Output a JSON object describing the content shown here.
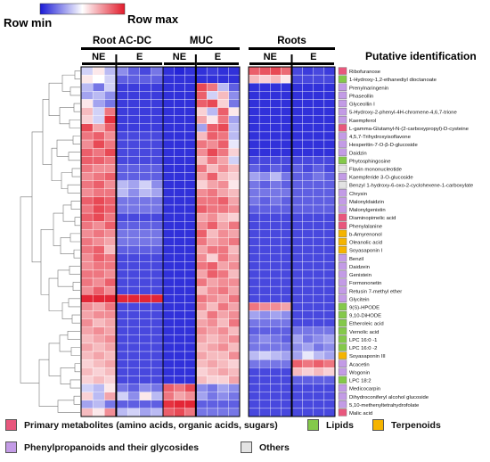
{
  "chart_data": {
    "type": "heatmap",
    "color_scale": {
      "min_label": "Row min",
      "max_label": "Row max",
      "low_color": "#1a1ad6",
      "mid_color": "#ffffff",
      "high_color": "#e21b2b"
    },
    "sample_groups": [
      {
        "name": "Root AC-DC",
        "subgroups": [
          {
            "name": "NE",
            "columns": 3
          },
          {
            "name": "E",
            "columns": 4
          }
        ]
      },
      {
        "name": "MUC",
        "subgroups": [
          {
            "name": "NE",
            "columns": 3
          },
          {
            "name": "E",
            "columns": 4
          }
        ]
      },
      {
        "name": "Roots",
        "subgroups": [
          {
            "name": "NE",
            "columns": 4
          },
          {
            "name": "E",
            "columns": 4
          }
        ]
      }
    ],
    "row_header": "Putative identification",
    "rows": [
      {
        "name": "Ribofuranose",
        "category": "primary"
      },
      {
        "name": "1-Hydroxy-1,2-ethanediyl  dioctanoate",
        "category": "lipid"
      },
      {
        "name": "Prenylnaringenin",
        "category": "phenyl"
      },
      {
        "name": "Phaseollin",
        "category": "phenyl"
      },
      {
        "name": "Glyceollin  I",
        "category": "phenyl"
      },
      {
        "name": "5-Hydroxy-2-phenyl-4H-chromene-4,6,7-trione",
        "category": "phenyl"
      },
      {
        "name": "Kaempferol",
        "category": "phenyl"
      },
      {
        "name": "L-gamma-Glutamyl-N-(2-carboxypropyl)-D-cysteine",
        "category": "primary"
      },
      {
        "name": "4,5,7-Trihydroxyisoflavone",
        "category": "phenyl"
      },
      {
        "name": "Hesperitin-7-O-β-D-glucoside",
        "category": "phenyl"
      },
      {
        "name": "Daidzin",
        "category": "phenyl"
      },
      {
        "name": "Phytosphingosine",
        "category": "lipid"
      },
      {
        "name": "Flavin  mononucleotide",
        "category": "others"
      },
      {
        "name": "Kaempferide 3-O-glucoside",
        "category": "phenyl"
      },
      {
        "name": "Benzyl 1-hydroxy-6-oxo-2-cyclohexene-1-carboxylate",
        "category": "others"
      },
      {
        "name": "Chrysin",
        "category": "phenyl"
      },
      {
        "name": "Malonyldaidzin",
        "category": "phenyl"
      },
      {
        "name": "Malonylgenistin",
        "category": "phenyl"
      },
      {
        "name": "Diaminopimelic  acid",
        "category": "primary"
      },
      {
        "name": "Phenylalanine",
        "category": "primary"
      },
      {
        "name": "b-Amyrenonol",
        "category": "terpenoid"
      },
      {
        "name": "Oleanolic  acid",
        "category": "terpenoid"
      },
      {
        "name": "Soyasaponin  I",
        "category": "terpenoid"
      },
      {
        "name": "Benzil",
        "category": "phenyl"
      },
      {
        "name": "Daidzein",
        "category": "phenyl"
      },
      {
        "name": "Genistein",
        "category": "phenyl"
      },
      {
        "name": "Formononetin",
        "category": "phenyl"
      },
      {
        "name": "Retusin 7-methyl ether",
        "category": "phenyl"
      },
      {
        "name": "Glycitein",
        "category": "phenyl"
      },
      {
        "name": "9(S)-HPODE",
        "category": "lipid"
      },
      {
        "name": "9,10-DiHODE",
        "category": "lipid"
      },
      {
        "name": "Etheroleic  acid",
        "category": "lipid"
      },
      {
        "name": "Vernolic  acid",
        "category": "lipid"
      },
      {
        "name": "LPC 16:0 -1",
        "category": "lipid"
      },
      {
        "name": "LPC 16:0 -2",
        "category": "lipid"
      },
      {
        "name": "Soyasaponin  III",
        "category": "terpenoid"
      },
      {
        "name": "Acacetin",
        "category": "phenyl"
      },
      {
        "name": "Wogonin",
        "category": "phenyl"
      },
      {
        "name": "LPC 18:2",
        "category": "lipid"
      },
      {
        "name": "Medicocarpin",
        "category": "phenyl"
      },
      {
        "name": "Dihydroconiferyl  alcohol glucoside",
        "category": "phenyl"
      },
      {
        "name": "5,10-methenyltetrahydrofolate",
        "category": "phenyl"
      },
      {
        "name": "Malic acid",
        "category": "primary"
      }
    ],
    "legend": [
      {
        "key": "primary",
        "label": "Primary metabolites (amino acids, organic acids, sugars)",
        "color": "#e8577d"
      },
      {
        "key": "lipid",
        "label": "Lipids",
        "color": "#84c94a"
      },
      {
        "key": "terpenoid",
        "label": "Terpenoids",
        "color": "#f5b400"
      },
      {
        "key": "phenyl",
        "label": "Phenylpropanoids and their glycosides",
        "color": "#c39be6"
      },
      {
        "key": "others",
        "label": "Others",
        "color": "#e3e3e3"
      }
    ],
    "values": [
      [
        -0.2,
        0.1,
        -0.3,
        -0.5,
        -0.7,
        -0.8,
        -0.6,
        -0.9,
        -0.95,
        -0.9,
        -0.9,
        -0.85,
        -0.9,
        -0.9,
        0.7,
        0.75,
        0.8,
        0.65,
        -0.8,
        -0.85,
        -0.8,
        -0.85
      ],
      [
        0.1,
        0.0,
        -0.2,
        -0.7,
        -0.7,
        -0.7,
        -0.7,
        -0.9,
        -0.9,
        -0.9,
        -0.9,
        -0.9,
        -0.9,
        -0.9,
        0.3,
        0.2,
        0.3,
        0.1,
        -0.8,
        -0.8,
        -0.8,
        -0.8
      ],
      [
        -0.3,
        -0.6,
        -0.2,
        -0.85,
        -0.85,
        -0.85,
        -0.85,
        -0.9,
        -0.9,
        -0.9,
        0.8,
        0.6,
        -0.3,
        -0.7,
        -0.9,
        -0.9,
        -0.9,
        -0.9,
        -0.9,
        -0.9,
        -0.9,
        -0.9
      ],
      [
        -0.4,
        -0.3,
        -0.5,
        -0.85,
        -0.85,
        -0.85,
        -0.85,
        -0.9,
        -0.9,
        -0.9,
        0.7,
        -0.2,
        0.3,
        -0.5,
        -0.9,
        -0.9,
        -0.9,
        -0.9,
        -0.9,
        -0.9,
        -0.9,
        -0.9
      ],
      [
        0.1,
        -0.4,
        -0.6,
        -0.85,
        -0.85,
        -0.85,
        -0.85,
        -0.9,
        -0.9,
        -0.9,
        0.7,
        0.8,
        0.2,
        -0.6,
        -0.9,
        -0.9,
        -0.9,
        -0.9,
        -0.9,
        -0.9,
        -0.9,
        -0.9
      ],
      [
        0.3,
        -0.2,
        0.6,
        -0.85,
        -0.85,
        -0.85,
        -0.85,
        -0.9,
        -0.9,
        -0.9,
        0.2,
        -0.3,
        0.7,
        0.1,
        -0.9,
        -0.9,
        -0.9,
        -0.9,
        -0.9,
        -0.9,
        -0.9,
        -0.9
      ],
      [
        0.2,
        -0.2,
        0.9,
        -0.85,
        -0.85,
        -0.85,
        -0.85,
        -0.9,
        -0.9,
        -0.9,
        0.4,
        0.1,
        0.6,
        -0.4,
        -0.9,
        -0.9,
        -0.9,
        -0.9,
        -0.9,
        -0.9,
        -0.9,
        -0.9
      ],
      [
        0.8,
        0.4,
        0.7,
        -0.85,
        -0.85,
        -0.85,
        -0.85,
        -0.9,
        -0.9,
        -0.9,
        -0.4,
        0.7,
        0.8,
        -0.3,
        -0.9,
        -0.9,
        -0.9,
        -0.9,
        -0.9,
        -0.9,
        -0.9,
        -0.9
      ],
      [
        0.6,
        0.7,
        0.5,
        -0.8,
        -0.8,
        -0.8,
        -0.8,
        -0.9,
        -0.9,
        -0.9,
        0.3,
        0.7,
        0.6,
        -0.3,
        -0.9,
        -0.9,
        -0.9,
        -0.9,
        -0.9,
        -0.9,
        -0.9,
        -0.9
      ],
      [
        0.5,
        0.8,
        0.6,
        -0.8,
        -0.8,
        -0.8,
        -0.8,
        -0.9,
        -0.9,
        -0.9,
        0.6,
        0.5,
        0.7,
        -0.1,
        -0.9,
        -0.9,
        -0.9,
        -0.9,
        -0.9,
        -0.9,
        -0.9,
        -0.9
      ],
      [
        0.7,
        0.6,
        0.8,
        -0.8,
        -0.8,
        -0.8,
        -0.8,
        -0.9,
        -0.9,
        -0.9,
        0.5,
        0.8,
        0.6,
        0.2,
        -0.9,
        -0.9,
        -0.9,
        -0.9,
        -0.9,
        -0.9,
        -0.9,
        -0.9
      ],
      [
        0.7,
        0.7,
        0.6,
        -0.8,
        -0.8,
        -0.8,
        -0.8,
        -0.9,
        -0.9,
        -0.9,
        0.3,
        0.6,
        0.4,
        -0.2,
        -0.8,
        -0.8,
        -0.8,
        -0.8,
        -0.8,
        -0.8,
        -0.8,
        -0.8
      ],
      [
        0.6,
        0.5,
        0.5,
        -0.7,
        -0.7,
        -0.7,
        -0.7,
        -0.9,
        -0.9,
        -0.9,
        0.6,
        0.3,
        0.5,
        0.3,
        -0.7,
        -0.8,
        -0.7,
        -0.8,
        -0.7,
        -0.8,
        -0.7,
        -0.8
      ],
      [
        0.5,
        0.6,
        0.7,
        -0.7,
        -0.7,
        -0.7,
        -0.7,
        -0.9,
        -0.9,
        -0.9,
        0.4,
        0.7,
        0.3,
        0.2,
        -0.4,
        -0.5,
        -0.3,
        -0.6,
        -0.7,
        -0.7,
        -0.6,
        -0.7
      ],
      [
        0.6,
        0.7,
        0.5,
        -0.3,
        -0.4,
        -0.2,
        -0.5,
        -0.9,
        -0.9,
        -0.9,
        0.2,
        0.4,
        0.5,
        0.1,
        -0.6,
        -0.7,
        -0.6,
        -0.7,
        -0.7,
        -0.7,
        -0.7,
        -0.7
      ],
      [
        0.5,
        0.6,
        0.6,
        -0.3,
        -0.5,
        -0.3,
        -0.4,
        -0.9,
        -0.9,
        -0.9,
        0.5,
        0.6,
        0.4,
        0.3,
        -0.6,
        -0.6,
        -0.6,
        -0.6,
        -0.7,
        -0.7,
        -0.7,
        -0.7
      ],
      [
        0.7,
        0.8,
        0.7,
        -0.6,
        -0.6,
        -0.6,
        -0.6,
        -0.9,
        -0.9,
        -0.9,
        0.6,
        0.6,
        0.7,
        0.4,
        -0.6,
        -0.7,
        -0.6,
        -0.7,
        -0.7,
        -0.7,
        -0.7,
        -0.7
      ],
      [
        0.6,
        0.8,
        0.7,
        -0.6,
        -0.6,
        -0.6,
        -0.6,
        -0.9,
        -0.9,
        -0.9,
        0.7,
        0.6,
        0.6,
        0.5,
        -0.7,
        -0.7,
        -0.7,
        -0.7,
        -0.7,
        -0.7,
        -0.7,
        -0.7
      ],
      [
        0.7,
        0.8,
        0.6,
        -0.8,
        -0.8,
        -0.8,
        -0.8,
        -0.9,
        -0.9,
        -0.9,
        0.4,
        0.5,
        0.3,
        0.2,
        -0.8,
        -0.8,
        -0.8,
        -0.8,
        -0.8,
        -0.8,
        -0.8,
        -0.8
      ],
      [
        0.6,
        0.5,
        0.7,
        -0.7,
        -0.7,
        -0.7,
        -0.7,
        -0.9,
        -0.9,
        -0.9,
        0.5,
        0.7,
        0.4,
        0.6,
        -0.8,
        -0.8,
        -0.8,
        -0.8,
        -0.8,
        -0.8,
        -0.8,
        -0.8
      ],
      [
        0.5,
        0.6,
        0.5,
        -0.6,
        -0.6,
        -0.6,
        -0.6,
        -0.9,
        -0.9,
        -0.9,
        0.7,
        0.3,
        0.5,
        0.4,
        -0.8,
        -0.8,
        -0.8,
        -0.8,
        -0.8,
        -0.8,
        -0.8,
        -0.8
      ],
      [
        0.6,
        0.5,
        0.4,
        -0.6,
        -0.6,
        -0.6,
        -0.6,
        -0.9,
        -0.9,
        -0.9,
        0.6,
        0.4,
        0.5,
        0.6,
        -0.8,
        -0.8,
        -0.8,
        -0.8,
        -0.8,
        -0.8,
        -0.8,
        -0.8
      ],
      [
        0.6,
        0.7,
        0.3,
        -0.7,
        -0.7,
        -0.7,
        -0.7,
        -0.9,
        -0.9,
        -0.9,
        0.4,
        0.6,
        0.6,
        0.3,
        -0.8,
        -0.8,
        -0.8,
        -0.8,
        -0.8,
        -0.8,
        -0.8,
        -0.8
      ],
      [
        0.5,
        0.7,
        0.6,
        -0.8,
        -0.8,
        -0.8,
        -0.8,
        -0.9,
        -0.9,
        -0.9,
        0.5,
        0.2,
        0.6,
        0.4,
        -0.8,
        -0.8,
        -0.8,
        -0.8,
        -0.8,
        -0.8,
        -0.8,
        -0.8
      ],
      [
        0.5,
        0.6,
        0.6,
        -0.8,
        -0.8,
        -0.8,
        -0.8,
        -0.9,
        -0.9,
        -0.9,
        0.6,
        0.7,
        0.4,
        0.5,
        -0.8,
        -0.8,
        -0.8,
        -0.8,
        -0.8,
        -0.8,
        -0.8,
        -0.8
      ],
      [
        0.6,
        0.6,
        0.5,
        -0.8,
        -0.8,
        -0.8,
        -0.8,
        -0.9,
        -0.9,
        -0.9,
        0.4,
        0.7,
        0.6,
        0.3,
        -0.8,
        -0.8,
        -0.8,
        -0.8,
        -0.8,
        -0.8,
        -0.8,
        -0.8
      ],
      [
        0.6,
        0.5,
        0.7,
        -0.8,
        -0.8,
        -0.8,
        -0.8,
        -0.9,
        -0.9,
        -0.9,
        0.6,
        0.4,
        0.5,
        0.5,
        -0.8,
        -0.8,
        -0.8,
        -0.8,
        -0.8,
        -0.8,
        -0.8,
        -0.8
      ],
      [
        0.5,
        0.7,
        0.5,
        -0.8,
        -0.8,
        -0.8,
        -0.8,
        -0.9,
        -0.9,
        -0.9,
        0.3,
        0.5,
        0.6,
        0.4,
        -0.8,
        -0.8,
        -0.8,
        -0.8,
        -0.8,
        -0.8,
        -0.8,
        -0.8
      ],
      [
        0.95,
        0.95,
        0.95,
        0.95,
        0.95,
        0.95,
        0.95,
        -0.9,
        -0.9,
        -0.9,
        0.6,
        0.5,
        0.4,
        0.6,
        -0.8,
        -0.8,
        -0.8,
        -0.8,
        -0.8,
        -0.8,
        -0.8,
        -0.8
      ],
      [
        0.5,
        0.4,
        0.6,
        -0.8,
        -0.8,
        -0.8,
        -0.8,
        -0.9,
        -0.9,
        -0.9,
        0.5,
        0.3,
        0.6,
        0.4,
        0.6,
        0.5,
        0.5,
        0.4,
        -0.8,
        -0.8,
        -0.8,
        -0.8
      ],
      [
        0.4,
        0.5,
        0.5,
        -0.8,
        -0.8,
        -0.8,
        -0.8,
        -0.9,
        -0.9,
        -0.9,
        0.3,
        0.6,
        0.4,
        0.5,
        -0.4,
        -0.5,
        -0.4,
        -0.5,
        -0.8,
        -0.8,
        -0.8,
        -0.8
      ],
      [
        0.5,
        0.3,
        0.4,
        -0.8,
        -0.8,
        -0.8,
        -0.8,
        -0.9,
        -0.9,
        -0.9,
        0.4,
        0.5,
        0.3,
        0.6,
        -0.6,
        -0.6,
        -0.6,
        -0.6,
        -0.8,
        -0.8,
        -0.8,
        -0.8
      ],
      [
        0.4,
        0.5,
        0.4,
        -0.8,
        -0.8,
        -0.8,
        -0.8,
        -0.9,
        -0.9,
        -0.9,
        0.5,
        0.4,
        0.5,
        0.3,
        -0.7,
        -0.7,
        -0.7,
        -0.7,
        -0.6,
        -0.6,
        -0.6,
        -0.6
      ],
      [
        0.3,
        0.4,
        0.5,
        -0.8,
        -0.8,
        -0.8,
        -0.8,
        -0.9,
        -0.9,
        -0.9,
        0.4,
        0.3,
        0.4,
        0.5,
        -0.6,
        -0.5,
        -0.6,
        -0.7,
        -0.4,
        -0.6,
        -0.5,
        -0.4
      ],
      [
        0.4,
        0.3,
        0.4,
        -0.8,
        -0.8,
        -0.8,
        -0.8,
        -0.9,
        -0.9,
        -0.9,
        0.3,
        0.4,
        0.5,
        0.3,
        -0.6,
        -0.6,
        -0.6,
        -0.6,
        -0.5,
        -0.4,
        -0.6,
        -0.5
      ],
      [
        0.3,
        0.4,
        0.3,
        -0.8,
        -0.8,
        -0.8,
        -0.8,
        -0.9,
        -0.9,
        -0.9,
        0.4,
        0.3,
        0.3,
        0.5,
        -0.3,
        -0.2,
        -0.3,
        -0.4,
        -0.4,
        -0.1,
        -0.3,
        -0.4
      ],
      [
        0.2,
        0.3,
        0.4,
        -0.8,
        -0.8,
        -0.8,
        -0.8,
        -0.9,
        -0.9,
        -0.9,
        0.3,
        0.4,
        0.3,
        0.2,
        -0.6,
        -0.6,
        -0.6,
        -0.6,
        0.7,
        0.6,
        0.7,
        0.6
      ],
      [
        0.3,
        0.2,
        0.3,
        -0.8,
        -0.8,
        -0.8,
        -0.8,
        -0.9,
        -0.9,
        -0.9,
        0.2,
        0.3,
        0.4,
        0.3,
        -0.8,
        -0.8,
        -0.8,
        -0.8,
        0.3,
        0.2,
        0.3,
        0.2
      ],
      [
        0.2,
        0.3,
        0.2,
        -0.8,
        -0.8,
        -0.8,
        -0.8,
        -0.9,
        -0.9,
        -0.9,
        0.3,
        0.2,
        0.2,
        0.4,
        -0.8,
        -0.8,
        -0.8,
        -0.8,
        -0.7,
        -0.7,
        -0.7,
        -0.7
      ],
      [
        -0.2,
        -0.3,
        0.1,
        -0.6,
        -0.7,
        -0.5,
        -0.6,
        0.7,
        0.6,
        0.8,
        -0.5,
        -0.6,
        -0.4,
        -0.5,
        -0.8,
        -0.8,
        -0.8,
        -0.8,
        -0.8,
        -0.8,
        -0.8,
        -0.8
      ],
      [
        0.2,
        -0.3,
        0.4,
        -0.2,
        -0.5,
        0.1,
        -0.3,
        0.6,
        0.4,
        0.5,
        -0.4,
        -0.6,
        -0.5,
        -0.6,
        -0.8,
        -0.8,
        -0.8,
        -0.8,
        -0.8,
        -0.8,
        -0.8,
        -0.8
      ],
      [
        -0.4,
        -0.3,
        -0.6,
        -0.7,
        -0.7,
        -0.7,
        -0.7,
        0.9,
        0.95,
        0.95,
        -0.7,
        -0.7,
        -0.7,
        -0.7,
        -0.8,
        -0.8,
        -0.8,
        -0.8,
        -0.8,
        -0.8,
        -0.8,
        -0.8
      ],
      [
        0.3,
        0.1,
        0.5,
        -0.3,
        -0.2,
        -0.4,
        -0.3,
        0.7,
        0.8,
        0.6,
        -0.6,
        -0.6,
        -0.6,
        -0.6,
        -0.8,
        -0.8,
        -0.8,
        -0.8,
        -0.8,
        -0.8,
        -0.8,
        -0.8
      ]
    ]
  }
}
